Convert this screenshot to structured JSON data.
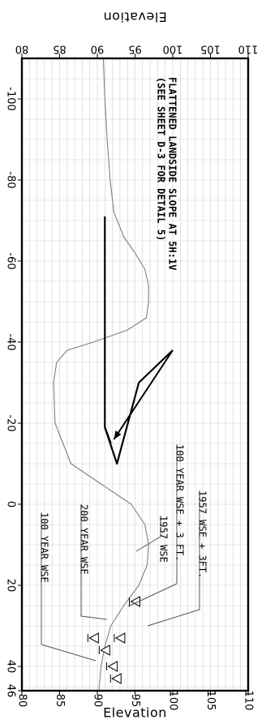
{
  "chart_data": {
    "type": "line",
    "orientation": "rotated 90 degrees clockwise",
    "xlabel": "",
    "ylabel": "Elevation",
    "xlim": [
      -110,
      46
    ],
    "ylim": [
      80,
      110
    ],
    "x_ticks": [
      "-100",
      "-80",
      "-60",
      "-40",
      "-20",
      "0",
      "20",
      "40",
      "46"
    ],
    "y_ticks": [
      "80",
      "85",
      "90",
      "95",
      "100",
      "105",
      "110"
    ],
    "grid": true,
    "series": [
      {
        "key": "ground",
        "color": "#808080",
        "points": [
          [
            -110,
            90.8
          ],
          [
            -100,
            91.0
          ],
          [
            -90,
            91.3
          ],
          [
            -80,
            91.7
          ],
          [
            -72,
            92.2
          ],
          [
            -66,
            93.5
          ],
          [
            -62,
            95.0
          ],
          [
            -58,
            96.3
          ],
          [
            -54,
            96.8
          ],
          [
            -50,
            96.8
          ],
          [
            -46,
            96.5
          ],
          [
            -43,
            94.0
          ],
          [
            -40,
            89.5
          ],
          [
            -38,
            86.0
          ],
          [
            -35,
            84.6
          ],
          [
            -30,
            84.2
          ],
          [
            -20,
            84.4
          ],
          [
            -10,
            86.5
          ],
          [
            -5,
            90.5
          ],
          [
            0,
            94.5
          ],
          [
            5,
            96.3
          ],
          [
            10,
            96.8
          ],
          [
            15,
            96.6
          ],
          [
            20,
            95.5
          ],
          [
            25,
            93.5
          ],
          [
            30,
            91.8
          ],
          [
            35,
            91.0
          ],
          [
            40,
            90.5
          ],
          [
            46,
            90.2
          ]
        ]
      },
      {
        "key": "design",
        "color": "#000000",
        "points": [
          [
            -71,
            91.0
          ],
          [
            -19,
            91.0
          ],
          [
            -10,
            92.6
          ],
          [
            -30,
            95.5
          ],
          [
            -38,
            100.0
          ]
        ],
        "branch": [
          [
            -19,
            91.0
          ],
          [
            -15,
            91.8
          ]
        ]
      }
    ],
    "annotations": [
      {
        "key": "flattened",
        "lines": [
          "FLATTENED LANDSIDE SLOPE AT 5H:1V",
          "(SEE SHEET D-3 FOR DETAIL 5)"
        ],
        "bold": true
      },
      {
        "key": "wse1957_3ft",
        "lines": [
          "1957 WSE + 3FT."
        ]
      },
      {
        "key": "yr100_3ft",
        "lines": [
          "100 YEAR WSE + 3 FT."
        ]
      },
      {
        "key": "wse1957",
        "lines": [
          "1957 WSE"
        ]
      },
      {
        "key": "yr200",
        "lines": [
          "200 YEAR WSE"
        ]
      },
      {
        "key": "yr100",
        "lines": [
          "100 YEAR WSE"
        ]
      }
    ],
    "water_markers": [
      {
        "label_key": "wse1957",
        "x": 24,
        "y": 95.0
      },
      {
        "label_key": "wse1957_3ft",
        "x": 40,
        "y": 92.0
      },
      {
        "label_key": "yr100_3ft",
        "x": 33,
        "y": 93.0
      },
      {
        "label_key": "yr200",
        "x": 33,
        "y": 89.5
      },
      {
        "label_key": "yr100",
        "x": 36,
        "y": 91.0
      },
      {
        "label_key": "extra",
        "x": 43,
        "y": 92.5
      }
    ]
  }
}
